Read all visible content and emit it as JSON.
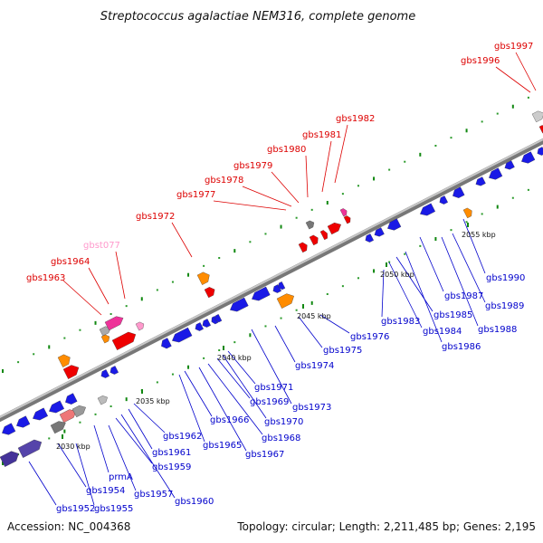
{
  "title": "Streptococcus agalactiae NEM316, complete genome",
  "footer": {
    "accession": "Accession: NC_004368",
    "topology": "Topology: circular; Length: 2,211,485 bp; Genes: 2,195"
  },
  "colors": {
    "plus_label": "#dd0000",
    "minus_label": "#0000cc",
    "rna_label": "#ff99cc",
    "gene_blue": "#1a1ae6",
    "gene_red": "#ee0000",
    "gene_orange": "#ff8c00",
    "gene_pink": "#ee3399",
    "gene_gray": "#888888",
    "backbone": "#999999",
    "tick_green": "#118811"
  },
  "ticks": [
    "2030 kbp",
    "2035 kbp",
    "2040 kbp",
    "2045 kbp",
    "2050 kbp",
    "2055 kbp"
  ],
  "plus_labels": [
    "gbs1963",
    "gbs1964",
    "gbst077",
    "gbs1972",
    "gbs1977",
    "gbs1978",
    "gbs1979",
    "gbs1980",
    "gbs1981",
    "gbs1982",
    "gbs1996",
    "gbs1997"
  ],
  "minus_labels": [
    "gbs1952",
    "gbs1954",
    "gbs1955",
    "prmA",
    "gbs1957",
    "gbs1959",
    "gbs1960",
    "gbs1961",
    "gbs1962",
    "gbs1965",
    "gbs1966",
    "gbs1967",
    "gbs1968",
    "gbs1969",
    "gbs1970",
    "gbs1971",
    "gbs1973",
    "gbs1974",
    "gbs1975",
    "gbs1976",
    "gbs1983",
    "gbs1984",
    "gbs1985",
    "gbs1986",
    "gbs1987",
    "gbs1988",
    "gbs1989",
    "gbs1990"
  ]
}
